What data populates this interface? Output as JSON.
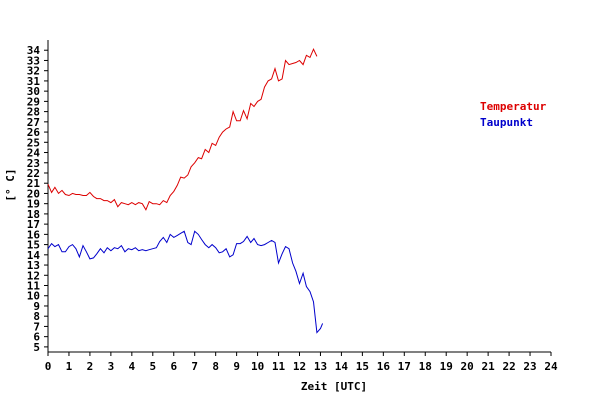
{
  "chart_data": {
    "type": "line",
    "title": "",
    "xlabel": "Zeit [UTC]",
    "ylabel": "[° C]",
    "xlim": [
      0,
      24
    ],
    "ylim": [
      5,
      35
    ],
    "x_ticks": [
      0,
      1,
      2,
      3,
      4,
      5,
      6,
      7,
      8,
      9,
      10,
      11,
      12,
      13,
      14,
      15,
      16,
      17,
      18,
      19,
      20,
      21,
      22,
      23,
      24
    ],
    "y_ticks": [
      5,
      6,
      7,
      8,
      9,
      10,
      11,
      12,
      13,
      14,
      15,
      16,
      17,
      18,
      19,
      20,
      21,
      22,
      23,
      24,
      25,
      26,
      27,
      28,
      29,
      30,
      31,
      32,
      33,
      34
    ],
    "grid": false,
    "legend_position": "right",
    "series": [
      {
        "name": "Temperatur",
        "color": "#dd0000",
        "points": [
          [
            0.0,
            20.9
          ],
          [
            0.17,
            20.1
          ],
          [
            0.33,
            20.6
          ],
          [
            0.5,
            20.0
          ],
          [
            0.67,
            20.3
          ],
          [
            0.83,
            19.9
          ],
          [
            1.0,
            19.8
          ],
          [
            1.17,
            20.0
          ],
          [
            1.33,
            19.9
          ],
          [
            1.5,
            19.9
          ],
          [
            1.67,
            19.8
          ],
          [
            1.83,
            19.8
          ],
          [
            2.0,
            20.1
          ],
          [
            2.17,
            19.7
          ],
          [
            2.33,
            19.5
          ],
          [
            2.5,
            19.5
          ],
          [
            2.67,
            19.3
          ],
          [
            2.83,
            19.3
          ],
          [
            3.0,
            19.1
          ],
          [
            3.17,
            19.4
          ],
          [
            3.33,
            18.7
          ],
          [
            3.5,
            19.1
          ],
          [
            3.67,
            19.0
          ],
          [
            3.83,
            18.9
          ],
          [
            4.0,
            19.1
          ],
          [
            4.17,
            18.9
          ],
          [
            4.33,
            19.1
          ],
          [
            4.5,
            19.0
          ],
          [
            4.67,
            18.4
          ],
          [
            4.83,
            19.2
          ],
          [
            5.0,
            19.0
          ],
          [
            5.17,
            19.0
          ],
          [
            5.33,
            18.9
          ],
          [
            5.5,
            19.3
          ],
          [
            5.67,
            19.1
          ],
          [
            5.83,
            19.8
          ],
          [
            6.0,
            20.2
          ],
          [
            6.17,
            20.8
          ],
          [
            6.33,
            21.6
          ],
          [
            6.5,
            21.5
          ],
          [
            6.67,
            21.8
          ],
          [
            6.83,
            22.6
          ],
          [
            7.0,
            23.0
          ],
          [
            7.17,
            23.5
          ],
          [
            7.33,
            23.4
          ],
          [
            7.5,
            24.3
          ],
          [
            7.67,
            24.0
          ],
          [
            7.83,
            24.9
          ],
          [
            8.0,
            24.7
          ],
          [
            8.17,
            25.5
          ],
          [
            8.33,
            26.0
          ],
          [
            8.5,
            26.3
          ],
          [
            8.67,
            26.5
          ],
          [
            8.83,
            28.0
          ],
          [
            9.0,
            27.1
          ],
          [
            9.17,
            27.1
          ],
          [
            9.33,
            28.1
          ],
          [
            9.5,
            27.3
          ],
          [
            9.67,
            28.8
          ],
          [
            9.83,
            28.5
          ],
          [
            10.0,
            29.0
          ],
          [
            10.17,
            29.2
          ],
          [
            10.33,
            30.4
          ],
          [
            10.5,
            31.0
          ],
          [
            10.67,
            31.2
          ],
          [
            10.83,
            32.2
          ],
          [
            11.0,
            31.0
          ],
          [
            11.17,
            31.2
          ],
          [
            11.33,
            33.0
          ],
          [
            11.5,
            32.6
          ],
          [
            11.67,
            32.7
          ],
          [
            11.83,
            32.8
          ],
          [
            12.0,
            33.0
          ],
          [
            12.17,
            32.6
          ],
          [
            12.33,
            33.5
          ],
          [
            12.5,
            33.3
          ],
          [
            12.67,
            34.1
          ],
          [
            12.83,
            33.4
          ]
        ]
      },
      {
        "name": "Taupunkt",
        "color": "#0000cc",
        "points": [
          [
            0.0,
            14.6
          ],
          [
            0.17,
            15.1
          ],
          [
            0.33,
            14.8
          ],
          [
            0.5,
            15.0
          ],
          [
            0.67,
            14.3
          ],
          [
            0.83,
            14.3
          ],
          [
            1.0,
            14.8
          ],
          [
            1.17,
            15.0
          ],
          [
            1.33,
            14.6
          ],
          [
            1.5,
            13.8
          ],
          [
            1.67,
            14.9
          ],
          [
            1.83,
            14.3
          ],
          [
            2.0,
            13.6
          ],
          [
            2.17,
            13.7
          ],
          [
            2.33,
            14.1
          ],
          [
            2.5,
            14.6
          ],
          [
            2.67,
            14.2
          ],
          [
            2.83,
            14.7
          ],
          [
            3.0,
            14.4
          ],
          [
            3.17,
            14.7
          ],
          [
            3.33,
            14.6
          ],
          [
            3.5,
            14.9
          ],
          [
            3.67,
            14.3
          ],
          [
            3.83,
            14.6
          ],
          [
            4.0,
            14.5
          ],
          [
            4.17,
            14.7
          ],
          [
            4.33,
            14.4
          ],
          [
            4.5,
            14.5
          ],
          [
            4.67,
            14.4
          ],
          [
            4.83,
            14.5
          ],
          [
            5.0,
            14.6
          ],
          [
            5.17,
            14.7
          ],
          [
            5.33,
            15.3
          ],
          [
            5.5,
            15.7
          ],
          [
            5.67,
            15.2
          ],
          [
            5.83,
            16.0
          ],
          [
            6.0,
            15.7
          ],
          [
            6.17,
            15.9
          ],
          [
            6.33,
            16.1
          ],
          [
            6.5,
            16.3
          ],
          [
            6.67,
            15.2
          ],
          [
            6.83,
            15.0
          ],
          [
            7.0,
            16.3
          ],
          [
            7.17,
            16.0
          ],
          [
            7.33,
            15.5
          ],
          [
            7.5,
            15.0
          ],
          [
            7.67,
            14.7
          ],
          [
            7.83,
            15.0
          ],
          [
            8.0,
            14.7
          ],
          [
            8.17,
            14.2
          ],
          [
            8.33,
            14.3
          ],
          [
            8.5,
            14.6
          ],
          [
            8.67,
            13.8
          ],
          [
            8.83,
            14.0
          ],
          [
            9.0,
            15.1
          ],
          [
            9.17,
            15.1
          ],
          [
            9.33,
            15.3
          ],
          [
            9.5,
            15.8
          ],
          [
            9.67,
            15.2
          ],
          [
            9.83,
            15.6
          ],
          [
            10.0,
            15.0
          ],
          [
            10.17,
            14.9
          ],
          [
            10.33,
            15.0
          ],
          [
            10.5,
            15.2
          ],
          [
            10.67,
            15.4
          ],
          [
            10.83,
            15.2
          ],
          [
            11.0,
            13.2
          ],
          [
            11.17,
            14.1
          ],
          [
            11.33,
            14.8
          ],
          [
            11.5,
            14.6
          ],
          [
            11.67,
            13.2
          ],
          [
            11.83,
            12.4
          ],
          [
            12.0,
            11.2
          ],
          [
            12.17,
            12.2
          ],
          [
            12.33,
            10.9
          ],
          [
            12.5,
            10.4
          ],
          [
            12.67,
            9.4
          ],
          [
            12.83,
            6.4
          ],
          [
            13.0,
            6.8
          ],
          [
            13.1,
            7.3
          ]
        ]
      }
    ]
  },
  "legend": [
    {
      "label": "Temperatur",
      "color": "#dd0000"
    },
    {
      "label": "Taupunkt",
      "color": "#0000cc"
    }
  ]
}
